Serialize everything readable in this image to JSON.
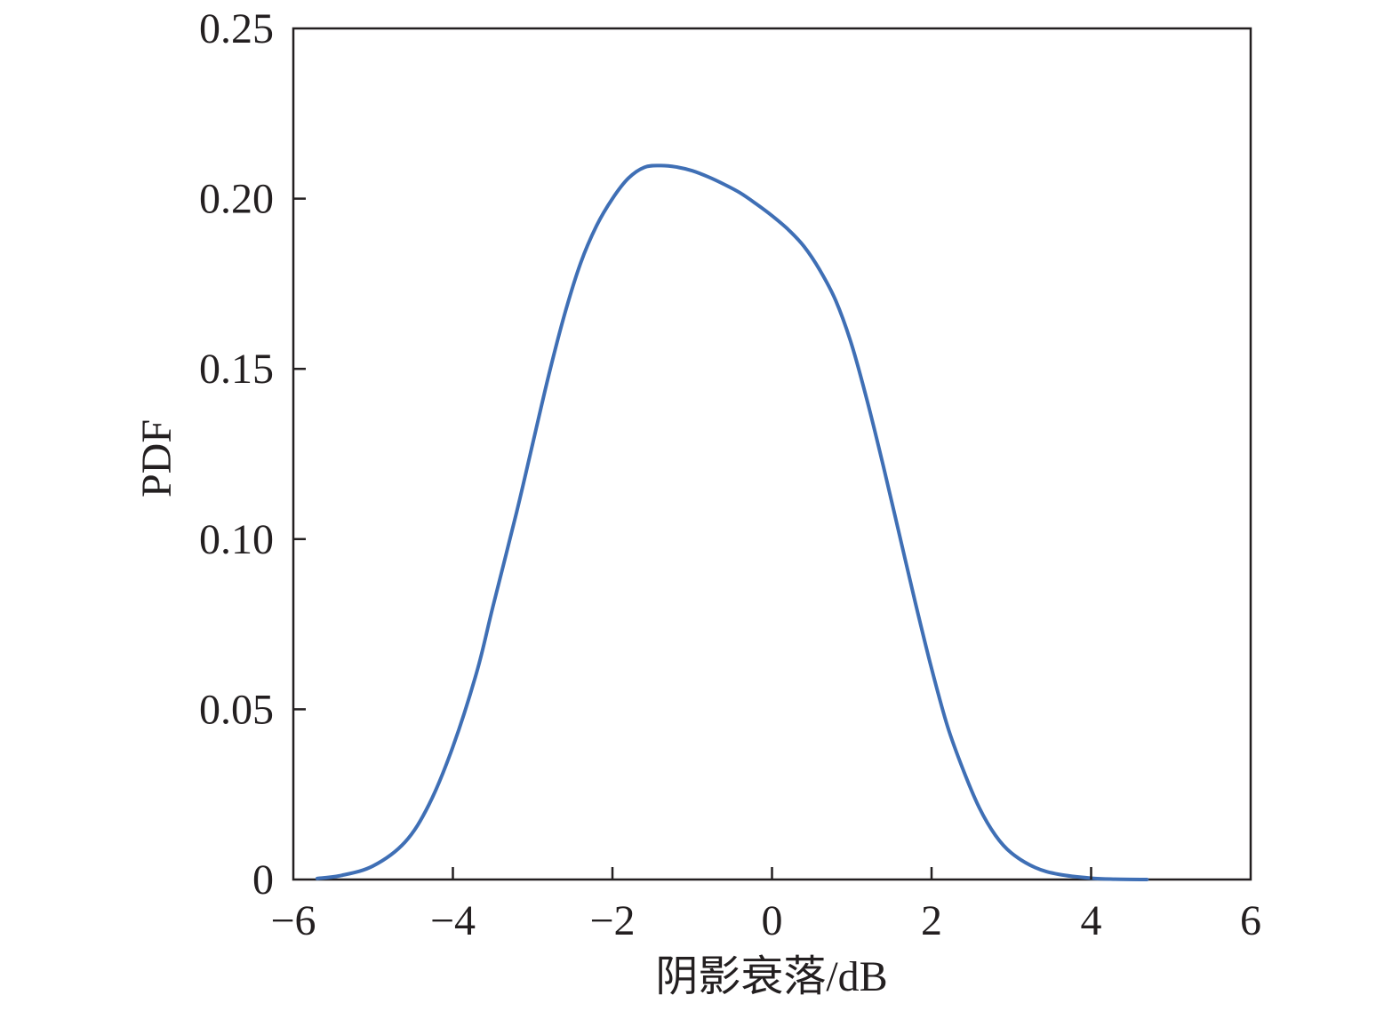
{
  "chart_data": {
    "type": "line",
    "xlabel": "阴影衰落/dB",
    "ylabel": "PDF",
    "xlim": [
      -6,
      6
    ],
    "ylim": [
      0,
      0.25
    ],
    "grid": false,
    "xticks": [
      -6,
      -4,
      -2,
      0,
      2,
      4,
      6
    ],
    "yticks": [
      0,
      0.05,
      0.1,
      0.15,
      0.2,
      0.25
    ],
    "xtick_labels": [
      "−6",
      "−4",
      "−2",
      "0",
      "2",
      "4",
      "6"
    ],
    "ytick_labels": [
      "0",
      "0.05",
      "0.10",
      "0.15",
      "0.20",
      "0.25"
    ],
    "series": [
      {
        "color": "#3f6fb5",
        "x": [
          -5.7,
          -5.4,
          -5.0,
          -4.6,
          -4.3,
          -4.0,
          -3.7,
          -3.5,
          -3.2,
          -3.0,
          -2.8,
          -2.6,
          -2.4,
          -2.2,
          -2.0,
          -1.8,
          -1.6,
          -1.4,
          -1.2,
          -1.0,
          -0.8,
          -0.6,
          -0.4,
          -0.2,
          0.0,
          0.2,
          0.4,
          0.6,
          0.8,
          1.0,
          1.2,
          1.4,
          1.6,
          1.8,
          2.0,
          2.2,
          2.4,
          2.6,
          2.8,
          3.0,
          3.3,
          3.6,
          4.0,
          4.3,
          4.7
        ],
        "y": [
          0.0003,
          0.0012,
          0.004,
          0.011,
          0.022,
          0.039,
          0.061,
          0.08,
          0.108,
          0.128,
          0.148,
          0.166,
          0.181,
          0.192,
          0.2,
          0.206,
          0.2092,
          0.2097,
          0.2093,
          0.2082,
          0.2064,
          0.2042,
          0.2017,
          0.1985,
          0.195,
          0.191,
          0.186,
          0.179,
          0.17,
          0.157,
          0.14,
          0.121,
          0.101,
          0.081,
          0.062,
          0.045,
          0.032,
          0.021,
          0.013,
          0.0078,
          0.0035,
          0.0015,
          0.0004,
          0.0001,
          0.0
        ]
      }
    ]
  }
}
